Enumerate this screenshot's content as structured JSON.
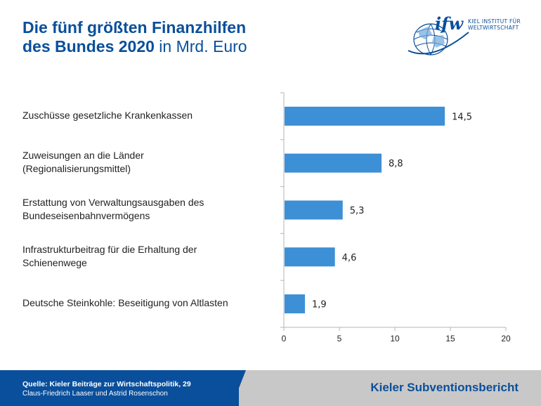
{
  "header": {
    "title_line1": "Die fünf größten Finanzhilfen",
    "title_line2_bold": "des Bundes 2020",
    "title_line2_light": " in Mrd. Euro"
  },
  "logo": {
    "mark": "ifw",
    "line1": "KIEL INSTITUT FÜR",
    "line2": "WELTWIRTSCHAFT"
  },
  "colors": {
    "brand": "#0a4f9b",
    "bar": "#3d8fd6",
    "axis": "#b5b5b5"
  },
  "chart_data": {
    "type": "bar",
    "orientation": "horizontal",
    "categories": [
      [
        "Zuschüsse gesetzliche Krankenkassen"
      ],
      [
        "Zuweisungen an die Länder",
        "(Regionalisierungsmittel)"
      ],
      [
        "Erstattung von Verwaltungsausgaben des",
        "Bundeseisenbahnvermögens"
      ],
      [
        "Infrastrukturbeitrag für die Erhaltung der",
        "Schienenwege"
      ],
      [
        "Deutsche Steinkohle: Beseitigung von Altlasten"
      ]
    ],
    "values": [
      14.5,
      8.8,
      5.3,
      4.6,
      1.9
    ],
    "value_labels": [
      "14,5",
      "8,8",
      "5,3",
      "4,6",
      "1,9"
    ],
    "xlim": [
      0,
      20
    ],
    "xticks": [
      0,
      5,
      10,
      15,
      20
    ],
    "grid": false,
    "title": "Die fünf größten Finanzhilfen des Bundes 2020 in Mrd. Euro"
  },
  "footer": {
    "source_line1": "Quelle: Kieler Beiträge zur Wirtschaftspolitik, 29",
    "source_line2": "Claus-Friedrich Laaser und Astrid Rosenschon",
    "report_title": "Kieler Subventionsbericht"
  }
}
